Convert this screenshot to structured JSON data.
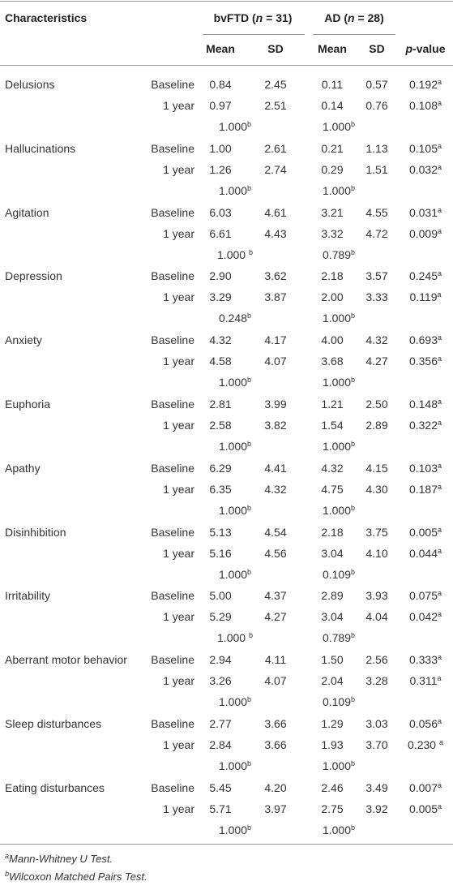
{
  "header": {
    "characteristics": "Characteristics",
    "groups": [
      {
        "pre": "bvFTD (",
        "italic": "n",
        "post": " = 31)"
      },
      {
        "pre": "AD (",
        "italic": "n",
        "post": " = 28)"
      }
    ],
    "columns": [
      "Mean",
      "SD",
      "Mean",
      "SD"
    ],
    "pvalue": {
      "italic": "p",
      "post": "-value"
    }
  },
  "rows": [
    {
      "name": "Delusions",
      "lines": [
        {
          "label": "Baseline",
          "values": [
            "0.84",
            "2.45",
            "0.11",
            "0.57"
          ],
          "p": {
            "value": "0.192",
            "sup": "a"
          }
        },
        {
          "label": "1 year",
          "values": [
            "0.97",
            "2.51",
            "0.14",
            "0.76"
          ],
          "p": {
            "value": "0.108",
            "sup": "a"
          }
        }
      ],
      "within": [
        {
          "value": "1.000",
          "sup": "b"
        },
        {
          "value": "1.000",
          "sup": "b"
        }
      ]
    },
    {
      "name": "Hallucinations",
      "lines": [
        {
          "label": "Baseline",
          "values": [
            "1.00",
            "2.61",
            "0.21",
            "1.13"
          ],
          "p": {
            "value": "0.105",
            "sup": "a"
          }
        },
        {
          "label": "1 year",
          "values": [
            "1.26",
            "2.74",
            "0.29",
            "1.51"
          ],
          "p": {
            "value": "0.032",
            "sup": "a"
          }
        }
      ],
      "within": [
        {
          "value": "1.000",
          "sup": "b"
        },
        {
          "value": "1.000",
          "sup": "b"
        }
      ]
    },
    {
      "name": "Agitation",
      "lines": [
        {
          "label": "Baseline",
          "values": [
            "6.03",
            "4.61",
            "3.21",
            "4.55"
          ],
          "p": {
            "value": "0.031",
            "sup": "a"
          }
        },
        {
          "label": "1 year",
          "values": [
            "6.61",
            "4.43",
            "3.32",
            "4.72"
          ],
          "p": {
            "value": "0.009",
            "sup": "a"
          }
        }
      ],
      "within": [
        {
          "value": "1.000 ",
          "sup": "b"
        },
        {
          "value": "0.789",
          "sup": "b"
        }
      ]
    },
    {
      "name": "Depression",
      "lines": [
        {
          "label": "Baseline",
          "values": [
            "2.90",
            "3.62",
            "2.18",
            "3.57"
          ],
          "p": {
            "value": "0.245",
            "sup": "a"
          }
        },
        {
          "label": "1 year",
          "values": [
            "3.29",
            "3.87",
            "2.00",
            "3.33"
          ],
          "p": {
            "value": "0.119",
            "sup": "a"
          }
        }
      ],
      "within": [
        {
          "value": "0.248",
          "sup": "b"
        },
        {
          "value": "1.000",
          "sup": "b"
        }
      ]
    },
    {
      "name": "Anxiety",
      "lines": [
        {
          "label": "Baseline",
          "values": [
            "4.32",
            "4.17",
            "4.00",
            "4.32"
          ],
          "p": {
            "value": "0.693",
            "sup": "a"
          }
        },
        {
          "label": "1 year",
          "values": [
            "4.58",
            "4.07",
            "3.68",
            "4.27"
          ],
          "p": {
            "value": "0.356",
            "sup": "a"
          }
        }
      ],
      "within": [
        {
          "value": "1.000",
          "sup": "b"
        },
        {
          "value": "1.000",
          "sup": "b"
        }
      ]
    },
    {
      "name": "Euphoria",
      "lines": [
        {
          "label": "Baseline",
          "values": [
            "2.81",
            "3.99",
            "1.21",
            "2.50"
          ],
          "p": {
            "value": "0.148",
            "sup": "a"
          }
        },
        {
          "label": "1 year",
          "values": [
            "2.58",
            "3.82",
            "1.54",
            "2.89"
          ],
          "p": {
            "value": "0.322",
            "sup": "a"
          }
        }
      ],
      "within": [
        {
          "value": "1.000",
          "sup": "b"
        },
        {
          "value": "1.000",
          "sup": "b"
        }
      ]
    },
    {
      "name": "Apathy",
      "lines": [
        {
          "label": "Baseline",
          "values": [
            "6.29",
            "4.41",
            "4.32",
            "4.15"
          ],
          "p": {
            "value": "0.103",
            "sup": "a"
          }
        },
        {
          "label": "1 year",
          "values": [
            "6.35",
            "4.32",
            "4.75",
            "4.30"
          ],
          "p": {
            "value": "0.187",
            "sup": "a"
          }
        }
      ],
      "within": [
        {
          "value": "1.000",
          "sup": "b"
        },
        {
          "value": "1.000",
          "sup": "b"
        }
      ]
    },
    {
      "name": "Disinhibition",
      "lines": [
        {
          "label": "Baseline",
          "values": [
            "5.13",
            "4.54",
            "2.18",
            "3.75"
          ],
          "p": {
            "value": "0.005",
            "sup": "a"
          }
        },
        {
          "label": "1 year",
          "values": [
            "5.16",
            "4.56",
            "3.04",
            "4.10"
          ],
          "p": {
            "value": "0.044",
            "sup": "a"
          }
        }
      ],
      "within": [
        {
          "value": "1.000",
          "sup": "b"
        },
        {
          "value": "0.109",
          "sup": "b"
        }
      ]
    },
    {
      "name": "Irritability",
      "lines": [
        {
          "label": "Baseline",
          "values": [
            "5.00",
            "4.37",
            "2.89",
            "3.93"
          ],
          "p": {
            "value": "0.075",
            "sup": "a"
          }
        },
        {
          "label": "1 year",
          "values": [
            "5.29",
            "4.27",
            "3.04",
            "4.04"
          ],
          "p": {
            "value": "0.042",
            "sup": "a"
          }
        }
      ],
      "within": [
        {
          "value": "1.000 ",
          "sup": "b"
        },
        {
          "value": "0.789",
          "sup": "b"
        }
      ]
    },
    {
      "name": "Aberrant motor behavior",
      "lines": [
        {
          "label": "Baseline",
          "values": [
            "2.94",
            "4.11",
            "1.50",
            "2.56"
          ],
          "p": {
            "value": "0.333",
            "sup": "a"
          }
        },
        {
          "label": "1 year",
          "values": [
            "3.26",
            "4.07",
            "2.04",
            "3.28"
          ],
          "p": {
            "value": "0.311",
            "sup": "a"
          }
        }
      ],
      "within": [
        {
          "value": "1.000",
          "sup": "b"
        },
        {
          "value": "0.109",
          "sup": "b"
        }
      ]
    },
    {
      "name": "Sleep disturbances",
      "lines": [
        {
          "label": "Baseline",
          "values": [
            "2.77",
            "3.66",
            "1.29",
            "3.03"
          ],
          "p": {
            "value": "0.056",
            "sup": "a"
          }
        },
        {
          "label": "1 year",
          "values": [
            "2.84",
            "3.66",
            "1.93",
            "3.70"
          ],
          "p": {
            "value": "0.230 ",
            "sup": "a"
          }
        }
      ],
      "within": [
        {
          "value": "1.000",
          "sup": "b"
        },
        {
          "value": "1.000",
          "sup": "b"
        }
      ]
    },
    {
      "name": "Eating disturbances",
      "lines": [
        {
          "label": "Baseline",
          "values": [
            "5.45",
            "4.20",
            "2.46",
            "3.49"
          ],
          "p": {
            "value": "0.007",
            "sup": "a"
          }
        },
        {
          "label": "1 year",
          "values": [
            "5.71",
            "3.97",
            "2.75",
            "3.92"
          ],
          "p": {
            "value": "0.005",
            "sup": "a"
          }
        }
      ],
      "within": [
        {
          "value": "1.000",
          "sup": "b"
        },
        {
          "value": "1.000",
          "sup": "b"
        }
      ]
    }
  ],
  "footnotes": [
    {
      "sup": "a",
      "text": "Mann-Whitney U Test."
    },
    {
      "sup": "b",
      "text": "Wilcoxon Matched Pairs Test."
    }
  ]
}
